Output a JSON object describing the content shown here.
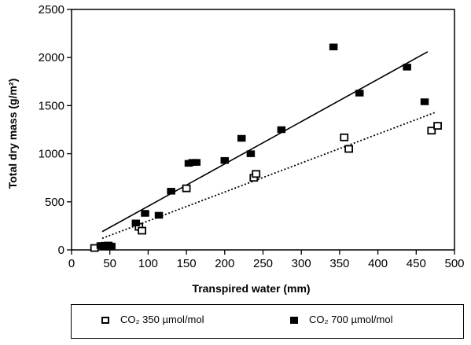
{
  "chart_data": {
    "type": "scatter",
    "xlabel": "Transpired water (mm)",
    "ylabel": "Total dry mass (g/m²)",
    "xlim": [
      0,
      500
    ],
    "ylim": [
      0,
      2500
    ],
    "xticks": [
      0,
      50,
      100,
      150,
      200,
      250,
      300,
      350,
      400,
      450,
      500
    ],
    "yticks": [
      0,
      500,
      1000,
      1500,
      2000,
      2500
    ],
    "grid": false,
    "legend_position": "bottom (outside plot, boxed)",
    "series": [
      {
        "name": "CO₂ 350 µmol/mol",
        "marker": "open-square",
        "color": "#000000",
        "points": [
          [
            30,
            20
          ],
          [
            42,
            40
          ],
          [
            48,
            45
          ],
          [
            88,
            240
          ],
          [
            92,
            200
          ],
          [
            150,
            640
          ],
          [
            238,
            750
          ],
          [
            241,
            790
          ],
          [
            356,
            1170
          ],
          [
            362,
            1050
          ],
          [
            470,
            1240
          ],
          [
            478,
            1290
          ]
        ],
        "trendline": {
          "style": "dotted",
          "from": [
            40,
            120
          ],
          "to": [
            475,
            1430
          ]
        }
      },
      {
        "name": "CO₂ 700 µmol/mol",
        "marker": "filled-square",
        "color": "#000000",
        "points": [
          [
            38,
            45
          ],
          [
            44,
            48
          ],
          [
            52,
            40
          ],
          [
            84,
            280
          ],
          [
            96,
            380
          ],
          [
            114,
            360
          ],
          [
            130,
            610
          ],
          [
            153,
            900
          ],
          [
            158,
            910
          ],
          [
            163,
            910
          ],
          [
            200,
            930
          ],
          [
            222,
            1160
          ],
          [
            234,
            1000
          ],
          [
            274,
            1250
          ],
          [
            342,
            2110
          ],
          [
            376,
            1630
          ],
          [
            438,
            1900
          ],
          [
            461,
            1540
          ]
        ],
        "trendline": {
          "style": "solid",
          "from": [
            40,
            190
          ],
          "to": [
            465,
            2060
          ]
        }
      }
    ]
  },
  "legend": {
    "item_350": "CO₂ 350 µmol/mol",
    "item_700": "CO₂ 700 µmol/mol"
  }
}
